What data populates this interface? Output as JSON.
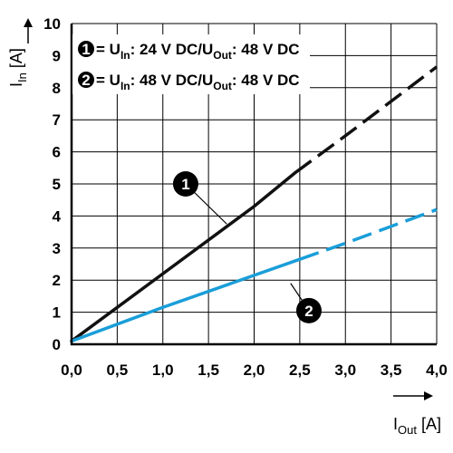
{
  "chart_data": {
    "type": "line",
    "xlim": [
      0,
      4
    ],
    "ylim": [
      0,
      10
    ],
    "x_ticks": [
      "0,0",
      "0,5",
      "1,0",
      "1,5",
      "2,0",
      "2,5",
      "3,0",
      "3,5",
      "4,0"
    ],
    "y_ticks": [
      "0",
      "1",
      "2",
      "3",
      "4",
      "5",
      "6",
      "7",
      "8",
      "9",
      "10"
    ],
    "grid": true,
    "xlabel": {
      "main": "I",
      "sub": "Out",
      "unit": " [A]"
    },
    "ylabel": {
      "main": "I",
      "sub": "In",
      "unit": " [A]"
    },
    "legend": [
      {
        "marker": "1",
        "text_a": " = U",
        "sub_a": "In",
        "text_b": ": 24 V DC/U",
        "sub_b": "Out",
        "text_c": ": 48 V DC"
      },
      {
        "marker": "2",
        "text_a": " = U",
        "sub_a": "In",
        "text_b": ": 48 V DC/U",
        "sub_b": "Out",
        "text_c": ": 48 V DC"
      }
    ],
    "series": [
      {
        "marker": "1",
        "color": "#111111",
        "solid_until_x": 2.45,
        "x": [
          0.0,
          1.0,
          2.0,
          2.45,
          3.0,
          4.0
        ],
        "y": [
          0.1,
          2.2,
          4.3,
          5.35,
          6.5,
          8.65
        ]
      },
      {
        "marker": "2",
        "color": "#1a9ed9",
        "solid_until_x": 2.5,
        "x": [
          0.0,
          1.0,
          2.0,
          2.5,
          3.0,
          4.0
        ],
        "y": [
          0.1,
          1.15,
          2.15,
          2.65,
          3.15,
          4.2
        ]
      }
    ],
    "annotations": [
      {
        "label": "1",
        "x": 1.25,
        "y": 5.0,
        "target_x": 1.7,
        "target_y": 3.75
      },
      {
        "label": "2",
        "x": 2.6,
        "y": 1.05,
        "target_x": 2.4,
        "target_y": 1.9
      }
    ]
  }
}
